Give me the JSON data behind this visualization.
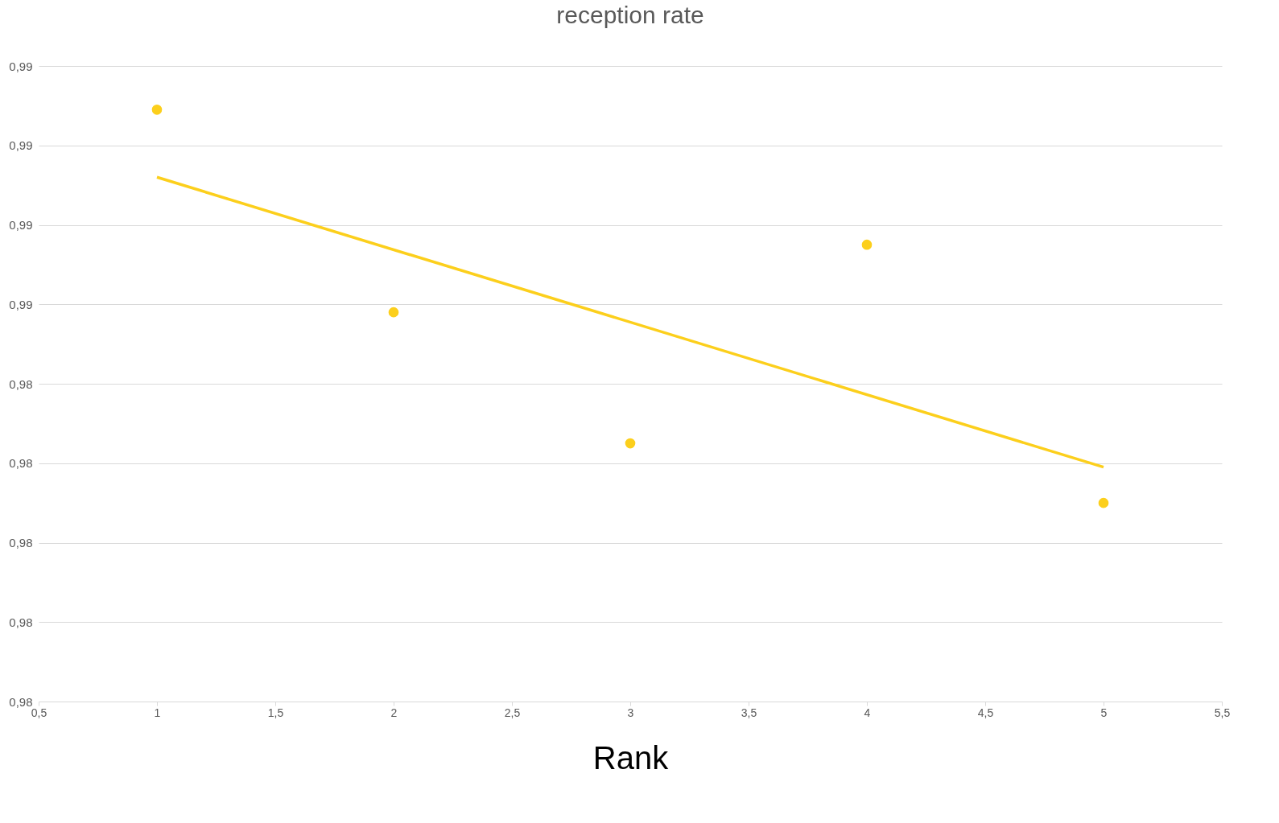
{
  "chart_data": {
    "type": "scatter",
    "title": "reception rate",
    "xlabel": "Rank",
    "x": [
      1,
      2,
      3,
      4,
      5
    ],
    "series": [
      {
        "color": "#fccf1c",
        "marker": "circle",
        "values": [
          0.9909,
          0.9858,
          0.9825,
          0.9875,
          0.981
        ]
      },
      {
        "type": "line",
        "color": "#fccf1c",
        "line_style": "solid",
        "x": [
          1,
          5
        ],
        "values": [
          0.9892,
          0.9819
        ]
      }
    ],
    "xlim": [
      0.5,
      5.5
    ],
    "xticks": [
      {
        "value": 0.5,
        "label": "0,5"
      },
      {
        "value": 1,
        "label": "1"
      },
      {
        "value": 1.5,
        "label": "1,5"
      },
      {
        "value": 2,
        "label": "2"
      },
      {
        "value": 2.5,
        "label": "2,5"
      },
      {
        "value": 3,
        "label": "3"
      },
      {
        "value": 3.5,
        "label": "3,5"
      },
      {
        "value": 4,
        "label": "4"
      },
      {
        "value": 4.5,
        "label": "4,5"
      },
      {
        "value": 5,
        "label": "5"
      },
      {
        "value": 5.5,
        "label": "5,5"
      }
    ],
    "ylim": [
      0.976,
      0.992
    ],
    "yticks": [
      {
        "value": 0.976,
        "label": "0,98"
      },
      {
        "value": 0.978,
        "label": "0,98"
      },
      {
        "value": 0.98,
        "label": "0,98"
      },
      {
        "value": 0.982,
        "label": "0,98"
      },
      {
        "value": 0.984,
        "label": "0,98"
      },
      {
        "value": 0.986,
        "label": "0,99"
      },
      {
        "value": 0.988,
        "label": "0,99"
      },
      {
        "value": 0.99,
        "label": "0,99"
      },
      {
        "value": 0.992,
        "label": "0,99"
      }
    ],
    "grid": "y"
  }
}
